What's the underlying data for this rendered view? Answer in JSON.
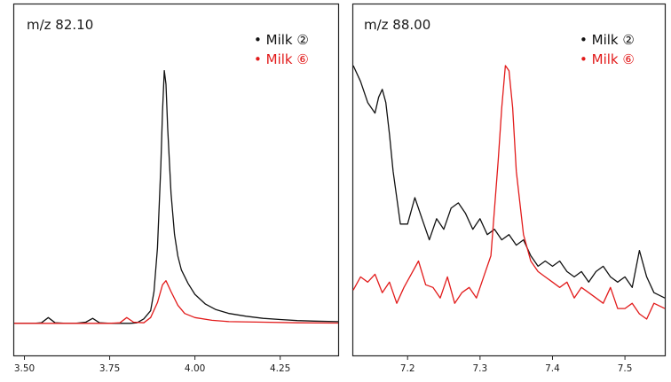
{
  "chart_data": [
    {
      "type": "line",
      "title": "m/z 82.10",
      "xlabel": "",
      "ylabel": "",
      "xlim": [
        3.47,
        4.42
      ],
      "ylim": [
        0,
        1.0
      ],
      "xticks": [
        3.5,
        3.75,
        4.0,
        4.25
      ],
      "xtick_labels": [
        "3.50",
        "3.75",
        "4.00",
        "4.25"
      ],
      "legend_position": "top-right",
      "grid": false,
      "series": [
        {
          "name": "Milk",
          "marker": "②",
          "color": "#111111",
          "x": [
            3.47,
            3.5,
            3.53,
            3.55,
            3.57,
            3.59,
            3.62,
            3.65,
            3.68,
            3.7,
            3.72,
            3.75,
            3.78,
            3.81,
            3.83,
            3.85,
            3.87,
            3.88,
            3.89,
            3.9,
            3.905,
            3.91,
            3.915,
            3.92,
            3.93,
            3.94,
            3.95,
            3.96,
            3.98,
            4.0,
            4.03,
            4.06,
            4.1,
            4.15,
            4.2,
            4.25,
            4.3,
            4.35,
            4.42
          ],
          "y": [
            0.004,
            0.004,
            0.004,
            0.006,
            0.025,
            0.006,
            0.004,
            0.004,
            0.008,
            0.022,
            0.006,
            0.004,
            0.004,
            0.004,
            0.006,
            0.02,
            0.05,
            0.12,
            0.28,
            0.58,
            0.78,
            0.93,
            0.88,
            0.72,
            0.48,
            0.33,
            0.25,
            0.2,
            0.15,
            0.11,
            0.075,
            0.055,
            0.04,
            0.03,
            0.022,
            0.018,
            0.014,
            0.012,
            0.01
          ]
        },
        {
          "name": "Milk",
          "marker": "⑥",
          "color": "#e21b1b",
          "x": [
            3.47,
            3.5,
            3.55,
            3.6,
            3.65,
            3.7,
            3.75,
            3.78,
            3.8,
            3.82,
            3.85,
            3.87,
            3.89,
            3.905,
            3.915,
            3.93,
            3.95,
            3.97,
            4.0,
            4.05,
            4.1,
            4.2,
            4.3,
            4.42
          ],
          "y": [
            0.004,
            0.004,
            0.004,
            0.004,
            0.004,
            0.004,
            0.004,
            0.006,
            0.025,
            0.008,
            0.006,
            0.025,
            0.08,
            0.145,
            0.16,
            0.12,
            0.07,
            0.04,
            0.025,
            0.015,
            0.01,
            0.008,
            0.006,
            0.005
          ]
        }
      ]
    },
    {
      "type": "line",
      "title": "m/z 88.00",
      "xlabel": "",
      "ylabel": "",
      "xlim": [
        7.125,
        7.555
      ],
      "ylim": [
        0,
        1.0
      ],
      "xticks": [
        7.2,
        7.3,
        7.4,
        7.5
      ],
      "xtick_labels": [
        "7.2",
        "7.3",
        "7.4",
        "7.5"
      ],
      "legend_position": "top-right",
      "grid": false,
      "series": [
        {
          "name": "Milk",
          "marker": "②",
          "color": "#111111",
          "x": [
            7.125,
            7.135,
            7.145,
            7.155,
            7.16,
            7.165,
            7.17,
            7.175,
            7.18,
            7.19,
            7.2,
            7.21,
            7.22,
            7.23,
            7.24,
            7.25,
            7.26,
            7.27,
            7.28,
            7.29,
            7.3,
            7.31,
            7.32,
            7.33,
            7.34,
            7.35,
            7.36,
            7.37,
            7.38,
            7.39,
            7.4,
            7.41,
            7.42,
            7.43,
            7.44,
            7.45,
            7.46,
            7.47,
            7.48,
            7.49,
            7.5,
            7.51,
            7.52,
            7.53,
            7.54,
            7.555
          ],
          "y": [
            0.98,
            0.92,
            0.84,
            0.8,
            0.86,
            0.89,
            0.84,
            0.72,
            0.58,
            0.38,
            0.38,
            0.48,
            0.4,
            0.32,
            0.4,
            0.36,
            0.44,
            0.46,
            0.42,
            0.36,
            0.4,
            0.34,
            0.36,
            0.32,
            0.34,
            0.3,
            0.32,
            0.26,
            0.22,
            0.24,
            0.22,
            0.24,
            0.2,
            0.18,
            0.2,
            0.16,
            0.2,
            0.22,
            0.18,
            0.16,
            0.18,
            0.14,
            0.28,
            0.18,
            0.12,
            0.1
          ],
          "markers_ignored": true
        },
        {
          "name": "Milk",
          "marker": "⑥",
          "color": "#e21b1b",
          "x": [
            7.125,
            7.135,
            7.145,
            7.155,
            7.165,
            7.175,
            7.185,
            7.195,
            7.205,
            7.215,
            7.225,
            7.235,
            7.245,
            7.255,
            7.265,
            7.275,
            7.285,
            7.295,
            7.305,
            7.315,
            7.32,
            7.325,
            7.33,
            7.335,
            7.34,
            7.345,
            7.35,
            7.36,
            7.37,
            7.38,
            7.39,
            7.4,
            7.41,
            7.42,
            7.43,
            7.44,
            7.45,
            7.46,
            7.47,
            7.48,
            7.49,
            7.5,
            7.51,
            7.52,
            7.53,
            7.54,
            7.555
          ],
          "y": [
            0.13,
            0.18,
            0.16,
            0.19,
            0.12,
            0.16,
            0.08,
            0.14,
            0.19,
            0.24,
            0.15,
            0.14,
            0.1,
            0.18,
            0.08,
            0.12,
            0.14,
            0.1,
            0.18,
            0.26,
            0.44,
            0.62,
            0.82,
            0.98,
            0.96,
            0.82,
            0.58,
            0.34,
            0.24,
            0.2,
            0.18,
            0.16,
            0.14,
            0.16,
            0.1,
            0.14,
            0.12,
            0.1,
            0.08,
            0.14,
            0.06,
            0.06,
            0.08,
            0.04,
            0.02,
            0.08,
            0.06
          ]
        }
      ]
    }
  ]
}
